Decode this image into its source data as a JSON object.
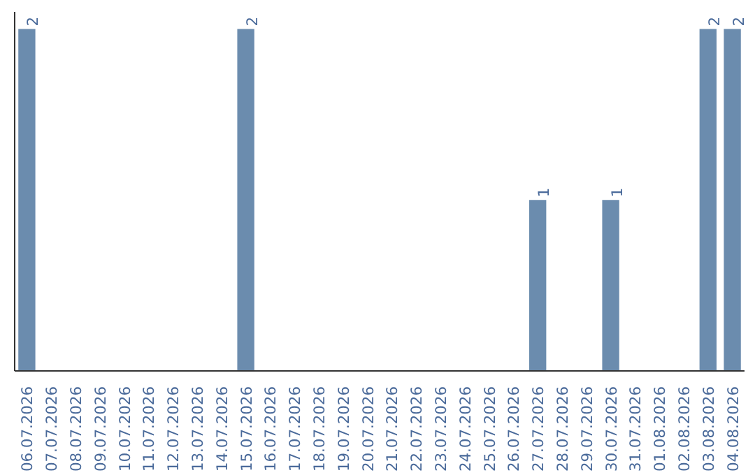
{
  "chart_data": {
    "type": "bar",
    "categories": [
      "06.07.2026",
      "07.07.2026",
      "08.07.2026",
      "09.07.2026",
      "10.07.2026",
      "11.07.2026",
      "12.07.2026",
      "13.07.2026",
      "14.07.2026",
      "15.07.2026",
      "16.07.2026",
      "17.07.2026",
      "18.07.2026",
      "19.07.2026",
      "20.07.2026",
      "21.07.2026",
      "22.07.2026",
      "23.07.2026",
      "24.07.2026",
      "25.07.2026",
      "26.07.2026",
      "27.07.2026",
      "28.07.2026",
      "29.07.2026",
      "30.07.2026",
      "31.07.2026",
      "01.08.2026",
      "02.08.2026",
      "03.08.2026",
      "04.08.2026"
    ],
    "values": [
      2,
      0,
      0,
      0,
      0,
      0,
      0,
      0,
      0,
      2,
      0,
      0,
      0,
      0,
      0,
      0,
      0,
      0,
      0,
      0,
      0,
      1,
      0,
      0,
      1,
      0,
      0,
      0,
      2,
      2
    ],
    "value_labels": [
      "2",
      null,
      null,
      null,
      null,
      null,
      null,
      null,
      null,
      "2",
      null,
      null,
      null,
      null,
      null,
      null,
      null,
      null,
      null,
      null,
      null,
      "1",
      null,
      null,
      "1",
      null,
      null,
      null,
      "2",
      "2"
    ],
    "color": "#6b8cae",
    "grid": false,
    "tick_labels": "x"
  }
}
